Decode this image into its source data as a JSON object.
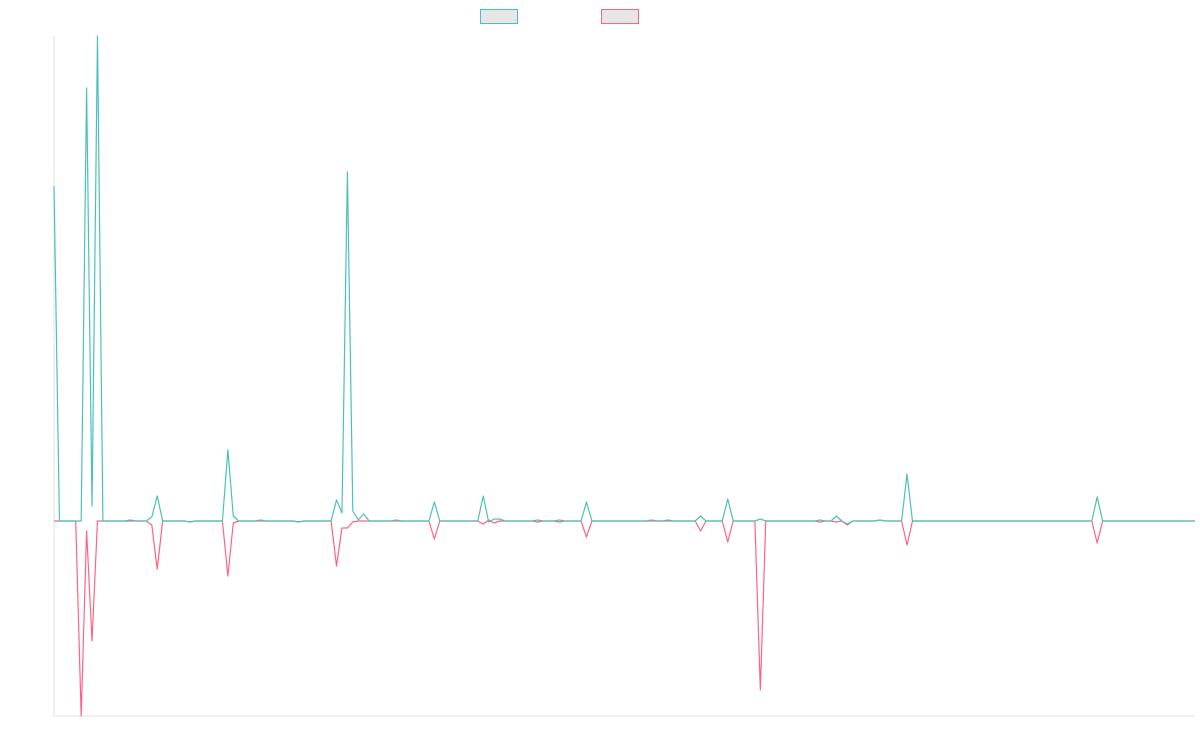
{
  "chart_data": {
    "type": "line",
    "title": "",
    "xlabel": "",
    "ylabel": "",
    "grid": false,
    "legend_placement": "top-center",
    "x_count": 210,
    "ylim": [
      -195,
      485
    ],
    "series": [
      {
        "color": "#4bc0c0",
        "points": [
          [
            0,
            335
          ],
          [
            1,
            0
          ],
          [
            5,
            0
          ],
          [
            6,
            433
          ],
          [
            7,
            15
          ],
          [
            8,
            485
          ],
          [
            9,
            0
          ],
          [
            13,
            0
          ],
          [
            14,
            1
          ],
          [
            15,
            0
          ],
          [
            17,
            0
          ],
          [
            18,
            4
          ],
          [
            19,
            25
          ],
          [
            20,
            0
          ],
          [
            24,
            0
          ],
          [
            25,
            -1
          ],
          [
            26,
            0
          ],
          [
            31,
            0
          ],
          [
            32,
            71
          ],
          [
            33,
            5
          ],
          [
            34,
            0
          ],
          [
            37,
            0
          ],
          [
            38,
            1
          ],
          [
            39,
            0
          ],
          [
            44,
            0
          ],
          [
            45,
            -1
          ],
          [
            46,
            0
          ],
          [
            51,
            0
          ],
          [
            52,
            21
          ],
          [
            53,
            8
          ],
          [
            54,
            349
          ],
          [
            55,
            10
          ],
          [
            56,
            1
          ],
          [
            57,
            7
          ],
          [
            58,
            0
          ],
          [
            62,
            0
          ],
          [
            63,
            1
          ],
          [
            64,
            0
          ],
          [
            69,
            0
          ],
          [
            70,
            19
          ],
          [
            71,
            0
          ],
          [
            78,
            0
          ],
          [
            79,
            25
          ],
          [
            80,
            -1
          ],
          [
            81,
            2
          ],
          [
            82,
            2
          ],
          [
            83,
            0
          ],
          [
            88,
            0
          ],
          [
            89,
            1
          ],
          [
            90,
            0
          ],
          [
            92,
            0
          ],
          [
            93,
            1
          ],
          [
            94,
            0
          ],
          [
            97,
            0
          ],
          [
            98,
            19
          ],
          [
            99,
            0
          ],
          [
            109,
            0
          ],
          [
            110,
            1
          ],
          [
            111,
            0
          ],
          [
            112,
            0
          ],
          [
            113,
            1
          ],
          [
            114,
            0
          ],
          [
            118,
            0
          ],
          [
            119,
            5
          ],
          [
            120,
            0
          ],
          [
            123,
            0
          ],
          [
            124,
            22
          ],
          [
            125,
            0
          ],
          [
            129,
            0
          ],
          [
            130,
            2
          ],
          [
            131,
            0
          ],
          [
            140,
            0
          ],
          [
            141,
            1
          ],
          [
            142,
            0
          ],
          [
            143,
            0
          ],
          [
            144,
            5
          ],
          [
            145,
            0
          ],
          [
            146,
            -3
          ],
          [
            147,
            0
          ],
          [
            151,
            0
          ],
          [
            152,
            1
          ],
          [
            153,
            0
          ],
          [
            155,
            0
          ],
          [
            156,
            0
          ],
          [
            157,
            47
          ],
          [
            158,
            0
          ],
          [
            191,
            0
          ],
          [
            192,
            24
          ],
          [
            193,
            0
          ],
          [
            210,
            0
          ]
        ]
      },
      {
        "color": "#ff6384",
        "points": [
          [
            0,
            0
          ],
          [
            4,
            0
          ],
          [
            5,
            -195
          ],
          [
            6,
            -10
          ],
          [
            7,
            -120
          ],
          [
            8,
            0
          ],
          [
            17,
            0
          ],
          [
            18,
            -4
          ],
          [
            19,
            -48
          ],
          [
            20,
            0
          ],
          [
            24,
            0
          ],
          [
            25,
            -1
          ],
          [
            26,
            0
          ],
          [
            31,
            0
          ],
          [
            32,
            -55
          ],
          [
            33,
            -2
          ],
          [
            34,
            0
          ],
          [
            37,
            0
          ],
          [
            38,
            0
          ],
          [
            39,
            0
          ],
          [
            44,
            0
          ],
          [
            45,
            -1
          ],
          [
            46,
            0
          ],
          [
            51,
            0
          ],
          [
            52,
            -45
          ],
          [
            53,
            -7
          ],
          [
            54,
            -7
          ],
          [
            55,
            -1
          ],
          [
            56,
            0
          ],
          [
            62,
            0
          ],
          [
            63,
            0
          ],
          [
            64,
            0
          ],
          [
            69,
            0
          ],
          [
            70,
            -18
          ],
          [
            71,
            0
          ],
          [
            78,
            0
          ],
          [
            79,
            -3
          ],
          [
            80,
            1
          ],
          [
            81,
            -2
          ],
          [
            82,
            0
          ],
          [
            88,
            0
          ],
          [
            89,
            -1
          ],
          [
            90,
            0
          ],
          [
            92,
            0
          ],
          [
            93,
            -1
          ],
          [
            94,
            0
          ],
          [
            97,
            0
          ],
          [
            98,
            -16
          ],
          [
            99,
            0
          ],
          [
            109,
            0
          ],
          [
            110,
            0
          ],
          [
            111,
            0
          ],
          [
            112,
            0
          ],
          [
            113,
            0
          ],
          [
            114,
            0
          ],
          [
            118,
            0
          ],
          [
            119,
            -10
          ],
          [
            120,
            0
          ],
          [
            123,
            0
          ],
          [
            124,
            -21
          ],
          [
            125,
            0
          ],
          [
            129,
            0
          ],
          [
            130,
            -169
          ],
          [
            131,
            0
          ],
          [
            140,
            0
          ],
          [
            141,
            -1
          ],
          [
            142,
            0
          ],
          [
            143,
            0
          ],
          [
            144,
            -1
          ],
          [
            145,
            0
          ],
          [
            146,
            -4
          ],
          [
            147,
            0
          ],
          [
            151,
            0
          ],
          [
            152,
            1
          ],
          [
            153,
            0
          ],
          [
            155,
            0
          ],
          [
            156,
            0
          ],
          [
            157,
            -24
          ],
          [
            158,
            0
          ],
          [
            191,
            0
          ],
          [
            192,
            -22
          ],
          [
            193,
            0
          ],
          [
            210,
            0
          ]
        ]
      }
    ]
  }
}
